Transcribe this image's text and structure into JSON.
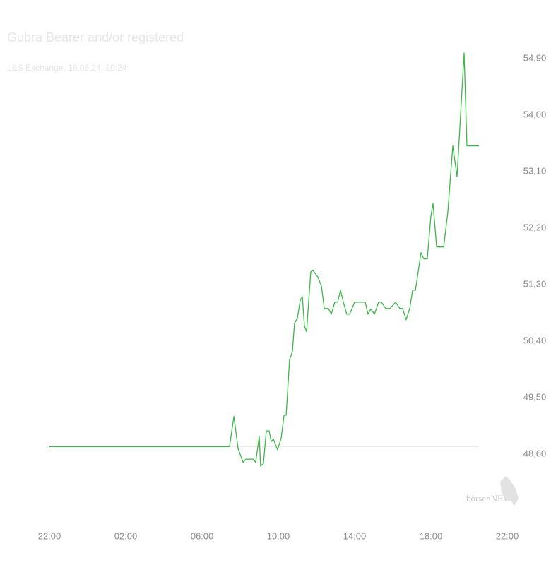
{
  "chart_data": {
    "type": "line",
    "title": "Gubra Bearer and/or registered",
    "subtitle": "L&S Exchange, 18.06.24, 20:24",
    "watermark": "börsenNEWS",
    "color": "#3cb84a",
    "reference_line": 48.72,
    "x": [
      0,
      9.44,
      9.67,
      9.89,
      10.15,
      10.3,
      10.67,
      10.81,
      11.0,
      11.07,
      11.22,
      11.37,
      11.52,
      11.63,
      11.74,
      11.96,
      12.15,
      12.3,
      12.41,
      12.59,
      12.74,
      12.85,
      13.0,
      13.15,
      13.26,
      13.37,
      13.48,
      13.7,
      13.81,
      14.07,
      14.26,
      14.41,
      14.63,
      14.78,
      14.96,
      15.11,
      15.26,
      15.41,
      15.59,
      15.74,
      16.0,
      16.56,
      16.7,
      16.85,
      17.04,
      17.26,
      17.41,
      17.63,
      17.85,
      18.15,
      18.37,
      18.52,
      18.7,
      18.89,
      19.04,
      19.19,
      19.48,
      19.63,
      19.81,
      20.0,
      20.11,
      20.3,
      20.67,
      20.89,
      21.15,
      21.37,
      21.74,
      21.89,
      22.52
    ],
    "values": [
      48.72,
      48.72,
      49.2,
      48.69,
      48.47,
      48.52,
      48.52,
      48.47,
      48.88,
      48.41,
      48.45,
      48.97,
      48.97,
      48.8,
      48.84,
      48.67,
      48.86,
      49.22,
      49.22,
      50.1,
      50.24,
      50.68,
      50.77,
      51.05,
      51.11,
      50.64,
      50.55,
      51.5,
      51.53,
      51.42,
      51.28,
      50.92,
      50.92,
      50.83,
      51.02,
      51.02,
      51.21,
      51.02,
      50.83,
      50.83,
      51.02,
      51.02,
      50.83,
      50.91,
      50.83,
      51.02,
      51.02,
      50.92,
      50.92,
      51.02,
      50.92,
      50.92,
      50.74,
      50.92,
      51.21,
      51.21,
      51.81,
      51.71,
      51.71,
      52.39,
      52.59,
      51.9,
      51.9,
      52.46,
      53.51,
      53.02,
      54.99,
      53.51,
      53.51
    ],
    "xlim": [
      0,
      24
    ],
    "xticks": [
      {
        "value": 0,
        "label": "22:00"
      },
      {
        "value": 4,
        "label": "02:00"
      },
      {
        "value": 8,
        "label": "06:00"
      },
      {
        "value": 12,
        "label": "10:00"
      },
      {
        "value": 16,
        "label": "14:00"
      },
      {
        "value": 20,
        "label": "18:00"
      },
      {
        "value": 24,
        "label": "22:00"
      }
    ],
    "ylim": [
      48.15,
      55.35
    ],
    "yticks": [
      {
        "value": 48.6,
        "label": "48,60"
      },
      {
        "value": 49.5,
        "label": "49,50"
      },
      {
        "value": 50.4,
        "label": "50,40"
      },
      {
        "value": 51.3,
        "label": "51,30"
      },
      {
        "value": 52.2,
        "label": "52,20"
      },
      {
        "value": 53.1,
        "label": "53,10"
      },
      {
        "value": 54.0,
        "label": "54,00"
      },
      {
        "value": 54.9,
        "label": "54,90"
      }
    ]
  }
}
